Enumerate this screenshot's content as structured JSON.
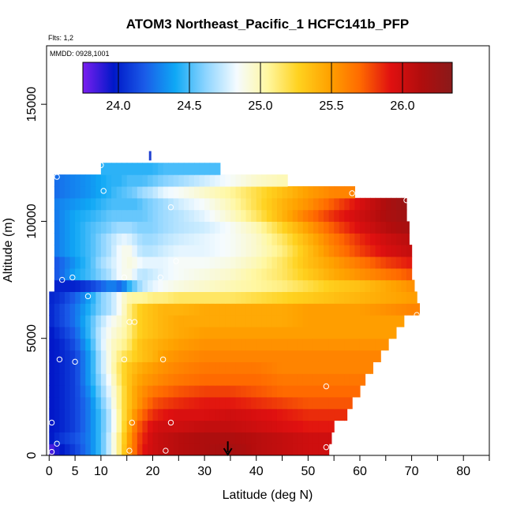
{
  "chart_data": {
    "type": "heatmap",
    "title": "ATOM3 Northeast_Pacific_1 HCFC141b_PFP",
    "flights_label": "Flts: 1,2",
    "dates_label": "MMDD: 0928,1001",
    "xlabel": "Latitude (deg N)",
    "ylabel": "Altitude (m)",
    "xlim": [
      -0.5,
      85
    ],
    "ylim": [
      0,
      17500
    ],
    "x_ticks": [
      0,
      5,
      10,
      20,
      30,
      40,
      50,
      60,
      70,
      80
    ],
    "x_minor_ticks": [
      15,
      25,
      35,
      45,
      55,
      65,
      75,
      85
    ],
    "y_ticks": [
      0,
      5000,
      10000,
      15000
    ],
    "colorbar": {
      "min": 23.75,
      "max": 26.35,
      "ticks": [
        24.0,
        24.5,
        25.0,
        25.5,
        26.0
      ],
      "colors": [
        "#7a1ff0",
        "#0018c8",
        "#1a5be8",
        "#0fa8f5",
        "#8ed5ff",
        "#f5fbff",
        "#fff7a0",
        "#ffd21f",
        "#ffa200",
        "#ff6a00",
        "#e01010",
        "#b00d0d",
        "#8a1a1a"
      ]
    },
    "curtain": {
      "layer_height_m": 500,
      "profile_lats": [
        0,
        2,
        5,
        8,
        10,
        12,
        13,
        14,
        15,
        16,
        17,
        18,
        20,
        22,
        25,
        30,
        35,
        40,
        45,
        50,
        55,
        60,
        65,
        70
      ],
      "profiles": [
        {
          "alt": 250,
          "xmax": 54.0,
          "vals": [
            23.8,
            23.95,
            24.1,
            24.3,
            24.5,
            24.8,
            25.0,
            25.2,
            25.45,
            25.6,
            25.75,
            25.9,
            26.0,
            26.05,
            26.1,
            26.15,
            26.2,
            26.1,
            26.05,
            26.0,
            26.0,
            26.0,
            26.0,
            26.0
          ]
        },
        {
          "alt": 750,
          "xmax": 54.5,
          "vals": [
            23.95,
            24.05,
            24.15,
            24.3,
            24.5,
            24.8,
            25.0,
            25.2,
            25.4,
            25.6,
            25.75,
            25.85,
            26.0,
            26.05,
            26.1,
            26.15,
            26.15,
            26.1,
            26.05,
            26.0,
            26.0,
            26.0,
            26.0,
            26.0
          ]
        },
        {
          "alt": 1250,
          "xmax": 55.0,
          "vals": [
            23.95,
            24.0,
            24.1,
            24.3,
            24.5,
            24.75,
            24.95,
            25.15,
            25.35,
            25.55,
            25.7,
            25.8,
            25.95,
            26.0,
            26.0,
            26.05,
            26.05,
            26.0,
            25.95,
            25.9,
            25.9,
            25.9,
            25.9,
            25.9
          ]
        },
        {
          "alt": 1750,
          "xmax": 57.5,
          "vals": [
            23.95,
            24.0,
            24.1,
            24.3,
            24.5,
            24.75,
            24.95,
            25.15,
            25.3,
            25.45,
            25.6,
            25.7,
            25.85,
            25.9,
            25.95,
            25.95,
            26.0,
            25.95,
            25.9,
            25.85,
            25.85,
            25.85,
            25.85,
            25.85
          ]
        },
        {
          "alt": 2250,
          "xmax": 58.5,
          "vals": [
            23.95,
            24.0,
            24.1,
            24.3,
            24.55,
            24.8,
            25.0,
            25.15,
            25.3,
            25.4,
            25.5,
            25.6,
            25.75,
            25.8,
            25.85,
            25.9,
            25.9,
            25.85,
            25.8,
            25.75,
            25.75,
            25.75,
            25.75,
            25.75
          ]
        },
        {
          "alt": 2750,
          "xmax": 60.0,
          "vals": [
            23.95,
            24.0,
            24.1,
            24.35,
            24.6,
            24.85,
            25.0,
            25.15,
            25.3,
            25.4,
            25.5,
            25.55,
            25.65,
            25.7,
            25.75,
            25.8,
            25.8,
            25.75,
            25.7,
            25.7,
            25.7,
            25.7,
            25.7,
            25.7
          ]
        },
        {
          "alt": 3250,
          "xmax": 61.0,
          "vals": [
            23.95,
            24.0,
            24.1,
            24.4,
            24.65,
            24.9,
            25.05,
            25.2,
            25.3,
            25.38,
            25.45,
            25.5,
            25.55,
            25.6,
            25.65,
            25.7,
            25.7,
            25.7,
            25.65,
            25.65,
            25.65,
            25.65,
            25.65,
            25.65
          ]
        },
        {
          "alt": 3750,
          "xmax": 62.5,
          "vals": [
            23.95,
            24.0,
            24.1,
            24.4,
            24.7,
            24.95,
            25.1,
            25.2,
            25.3,
            25.35,
            25.4,
            25.45,
            25.5,
            25.55,
            25.6,
            25.65,
            25.65,
            25.65,
            25.6,
            25.6,
            25.6,
            25.6,
            25.6,
            25.6
          ]
        },
        {
          "alt": 4250,
          "xmax": 64.0,
          "vals": [
            23.95,
            24.0,
            24.1,
            24.4,
            24.7,
            24.95,
            25.05,
            25.15,
            25.2,
            25.25,
            25.3,
            25.35,
            25.4,
            25.5,
            25.55,
            25.6,
            25.6,
            25.6,
            25.6,
            25.6,
            25.6,
            25.6,
            25.6,
            25.6
          ]
        },
        {
          "alt": 4750,
          "xmax": 65.5,
          "vals": [
            23.95,
            24.0,
            24.15,
            24.45,
            24.75,
            24.95,
            25.0,
            25.05,
            25.1,
            25.2,
            25.3,
            25.35,
            25.4,
            25.45,
            25.5,
            25.55,
            25.55,
            25.55,
            25.55,
            25.55,
            25.55,
            25.55,
            25.55,
            25.55
          ]
        },
        {
          "alt": 5250,
          "xmax": 67.0,
          "vals": [
            23.95,
            24.05,
            24.2,
            24.5,
            24.75,
            24.9,
            24.95,
            25.0,
            25.05,
            25.15,
            25.25,
            25.3,
            25.35,
            25.4,
            25.45,
            25.5,
            25.5,
            25.5,
            25.5,
            25.5,
            25.5,
            25.5,
            25.5,
            25.5
          ]
        },
        {
          "alt": 5750,
          "xmax": 68.5,
          "vals": [
            24.0,
            24.1,
            24.25,
            24.5,
            24.7,
            24.85,
            24.9,
            24.95,
            25.05,
            25.15,
            25.25,
            25.3,
            25.35,
            25.4,
            25.45,
            25.45,
            25.45,
            25.45,
            25.45,
            25.5,
            25.5,
            25.5,
            25.5,
            25.5
          ]
        },
        {
          "alt": 6250,
          "xmax": 71.5,
          "vals": [
            24.0,
            24.1,
            24.25,
            24.45,
            24.6,
            24.7,
            24.8,
            24.9,
            25.05,
            25.15,
            25.25,
            25.3,
            25.35,
            25.4,
            25.4,
            25.45,
            25.45,
            25.45,
            25.45,
            25.5,
            25.5,
            25.5,
            25.55,
            25.6
          ]
        },
        {
          "alt": 6750,
          "xmax": 71.0,
          "vals": [
            24.0,
            24.05,
            24.2,
            24.4,
            24.6,
            24.7,
            24.8,
            24.9,
            25.0,
            25.05,
            25.05,
            25.05,
            25.1,
            25.1,
            25.15,
            25.15,
            25.15,
            25.2,
            25.25,
            25.3,
            25.35,
            25.4,
            25.45,
            25.5
          ]
        },
        {
          "alt": 7250,
          "xmax": 70.5,
          "vals": [
            24.0,
            24.0,
            24.0,
            24.1,
            24.2,
            24.3,
            24.25,
            24.2,
            24.4,
            24.5,
            24.6,
            24.7,
            24.8,
            24.85,
            24.9,
            24.95,
            25.0,
            25.05,
            25.1,
            25.2,
            25.3,
            25.35,
            25.45,
            25.55
          ]
        },
        {
          "alt": 7750,
          "xmax": 70.0,
          "vals": [
            24.1,
            24.2,
            24.4,
            24.5,
            24.6,
            24.7,
            24.8,
            24.85,
            24.9,
            24.85,
            24.75,
            24.7,
            24.75,
            24.8,
            24.85,
            24.9,
            24.95,
            25.05,
            25.15,
            25.3,
            25.45,
            25.55,
            25.65,
            25.75
          ]
        },
        {
          "alt": 8250,
          "xmax": 70.0,
          "vals": [
            24.1,
            24.2,
            24.35,
            24.5,
            24.65,
            24.75,
            24.8,
            24.85,
            24.9,
            24.9,
            24.85,
            24.8,
            24.8,
            24.8,
            24.85,
            24.85,
            24.9,
            25.0,
            25.15,
            25.35,
            25.5,
            25.65,
            25.8,
            25.9
          ]
        },
        {
          "alt": 8750,
          "xmax": 70.0,
          "vals": [
            24.2,
            24.3,
            24.4,
            24.5,
            24.6,
            24.7,
            24.8,
            24.85,
            24.9,
            24.85,
            24.75,
            24.7,
            24.7,
            24.75,
            24.8,
            24.8,
            24.85,
            24.95,
            25.1,
            25.35,
            25.6,
            25.8,
            25.95,
            26.05
          ]
        },
        {
          "alt": 9250,
          "xmax": 69.5,
          "vals": [
            24.2,
            24.3,
            24.4,
            24.5,
            24.6,
            24.7,
            24.75,
            24.8,
            24.8,
            24.75,
            24.7,
            24.65,
            24.65,
            24.7,
            24.75,
            24.8,
            24.85,
            24.95,
            25.15,
            25.4,
            25.65,
            25.85,
            26.0,
            26.1
          ]
        },
        {
          "alt": 9750,
          "xmax": 69.5,
          "vals": [
            24.2,
            24.3,
            24.4,
            24.5,
            24.55,
            24.6,
            24.65,
            24.65,
            24.65,
            24.65,
            24.6,
            24.6,
            24.6,
            24.65,
            24.7,
            24.75,
            24.85,
            25.0,
            25.25,
            25.5,
            25.75,
            25.95,
            26.1,
            26.2
          ]
        },
        {
          "alt": 10250,
          "xmax": 69.0,
          "vals": [
            24.2,
            24.3,
            24.4,
            24.45,
            24.5,
            24.55,
            24.55,
            24.55,
            24.55,
            24.55,
            24.55,
            24.55,
            24.6,
            24.65,
            24.7,
            24.8,
            24.95,
            25.15,
            25.4,
            25.65,
            25.85,
            26.0,
            26.15,
            26.25
          ]
        },
        {
          "alt": 10750,
          "xmax": 69.0,
          "vals": [
            24.25,
            24.3,
            24.35,
            24.4,
            24.45,
            24.5,
            24.5,
            24.5,
            24.5,
            24.5,
            24.5,
            24.55,
            24.6,
            24.65,
            24.75,
            24.85,
            25.0,
            25.2,
            25.4,
            25.55,
            25.75,
            25.95,
            26.15,
            26.3
          ]
        },
        {
          "alt": 11250,
          "xmax": 59.0,
          "vals": [
            24.2,
            24.25,
            24.3,
            24.35,
            24.4,
            24.45,
            24.5,
            24.5,
            24.55,
            24.55,
            24.6,
            24.65,
            24.7,
            24.8,
            24.85,
            24.95,
            25.05,
            25.2,
            25.35,
            25.5,
            25.6,
            25.6,
            25.6,
            25.6
          ]
        },
        {
          "alt": 11750,
          "xmax": 46.0,
          "vals": [
            24.2,
            24.25,
            24.3,
            24.35,
            24.4,
            24.45,
            24.45,
            24.45,
            24.5,
            24.5,
            24.5,
            24.5,
            24.55,
            24.6,
            24.65,
            24.75,
            24.85,
            24.95,
            25.0,
            25.0,
            25.0,
            25.0,
            25.0,
            25.0
          ]
        },
        {
          "alt": 12250,
          "xmax": 33.0,
          "vals": [
            24.4,
            24.4,
            24.4,
            24.4,
            24.45,
            24.45,
            24.45,
            24.45,
            24.45,
            24.45,
            24.45,
            24.45,
            24.45,
            24.5,
            24.5,
            24.5,
            24.5,
            24.5,
            24.5,
            24.5,
            24.5,
            24.5,
            24.5,
            24.5
          ]
        }
      ],
      "layer_xmin": {
        "default": 0.0,
        "7000_and_above": 1.0,
        "11000_and_above": 1.0,
        "12000_and_above": 10.0
      }
    },
    "samples": [
      {
        "lat": 0.5,
        "alt": 150
      },
      {
        "lat": 1.5,
        "alt": 500
      },
      {
        "lat": 0.5,
        "alt": 1400
      },
      {
        "lat": 2.0,
        "alt": 4100
      },
      {
        "lat": 5.0,
        "alt": 4000
      },
      {
        "lat": 7.5,
        "alt": 6800
      },
      {
        "lat": 2.5,
        "alt": 7500
      },
      {
        "lat": 4.5,
        "alt": 7600
      },
      {
        "lat": 14.5,
        "alt": 7600
      },
      {
        "lat": 21.5,
        "alt": 7600
      },
      {
        "lat": 24.5,
        "alt": 8300
      },
      {
        "lat": 23.5,
        "alt": 10600
      },
      {
        "lat": 10.5,
        "alt": 11300
      },
      {
        "lat": 1.5,
        "alt": 11900
      },
      {
        "lat": 10.0,
        "alt": 12400
      },
      {
        "lat": 15.5,
        "alt": 5700
      },
      {
        "lat": 16.5,
        "alt": 5700
      },
      {
        "lat": 14.5,
        "alt": 4100
      },
      {
        "lat": 22.0,
        "alt": 4100
      },
      {
        "lat": 16.0,
        "alt": 1400
      },
      {
        "lat": 23.5,
        "alt": 1400
      },
      {
        "lat": 15.5,
        "alt": 200
      },
      {
        "lat": 22.5,
        "alt": 200
      },
      {
        "lat": 53.5,
        "alt": 2950
      },
      {
        "lat": 53.5,
        "alt": 350
      },
      {
        "lat": 58.5,
        "alt": 11200
      },
      {
        "lat": 69.0,
        "alt": 10900
      },
      {
        "lat": 71.0,
        "alt": 6000
      }
    ],
    "marker_arrow": {
      "lat": 34.5,
      "alt_top": 600,
      "alt_bottom": 0
    },
    "blue_tick": {
      "lat": 19.5,
      "alt_top": 13000,
      "alt_bottom": 12600
    }
  }
}
